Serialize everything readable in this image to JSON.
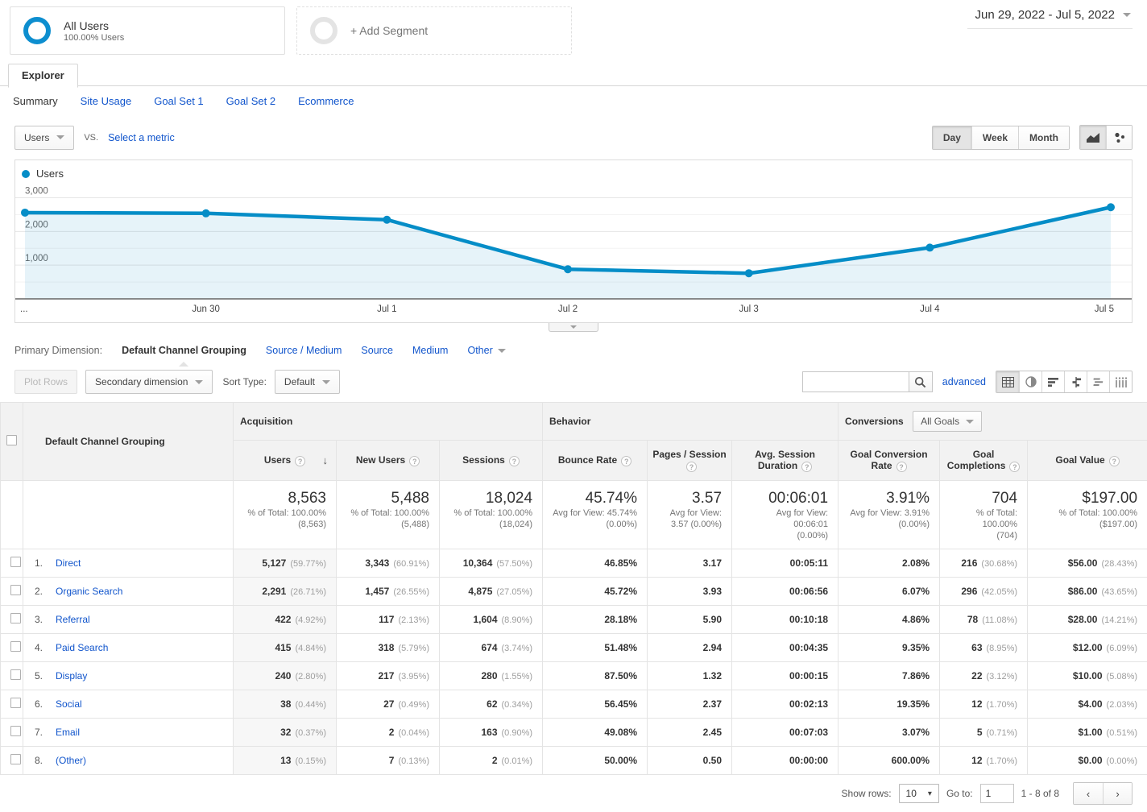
{
  "colors": {
    "brand_blue": "#058dc7",
    "link_blue": "#1155cc",
    "grid_line": "#e6e6e6",
    "header_bg": "#f2f2f2"
  },
  "segments": {
    "all_users": {
      "title": "All Users",
      "subtitle": "100.00% Users"
    },
    "add_segment": "+ Add Segment"
  },
  "date_range": "Jun 29, 2022 - Jul 5, 2022",
  "tabs": {
    "explorer": "Explorer",
    "subtabs": [
      {
        "label": "Summary",
        "active": true
      },
      {
        "label": "Site Usage",
        "active": false
      },
      {
        "label": "Goal Set 1",
        "active": false
      },
      {
        "label": "Goal Set 2",
        "active": false
      },
      {
        "label": "Ecommerce",
        "active": false
      }
    ]
  },
  "metric_controls": {
    "metric": "Users",
    "vs": "VS.",
    "select_metric": "Select a metric",
    "granularity": [
      "Day",
      "Week",
      "Month"
    ],
    "active_granularity": "Day"
  },
  "chart_data": {
    "type": "line",
    "title": "Users over time",
    "legend": "Users",
    "x_labels": [
      "...",
      "Jun 30",
      "Jul 1",
      "Jul 2",
      "Jul 3",
      "Jul 4",
      "Jul 5"
    ],
    "series": [
      {
        "name": "Users",
        "values": [
          2560,
          2540,
          2350,
          880,
          760,
          1520,
          2720
        ]
      }
    ],
    "y_ticks": [
      1000,
      2000,
      3000
    ],
    "y_tick_labels": [
      "1,000",
      "2,000",
      "3,000"
    ],
    "minor_ticks": [
      500,
      1500,
      2500
    ],
    "ylim": [
      0,
      3300
    ],
    "grid": true,
    "legend_position": "top-left"
  },
  "primary_dimension": {
    "label": "Primary Dimension:",
    "options": [
      {
        "label": "Default Channel Grouping",
        "active": true
      },
      {
        "label": "Source / Medium",
        "active": false
      },
      {
        "label": "Source",
        "active": false
      },
      {
        "label": "Medium",
        "active": false
      },
      {
        "label": "Other",
        "active": false,
        "caret": true
      }
    ]
  },
  "toolbar": {
    "plot_rows": "Plot Rows",
    "secondary_dimension": "Secondary dimension",
    "sort_type_label": "Sort Type:",
    "sort_type_value": "Default",
    "search_value": "",
    "advanced": "advanced",
    "view_icons": [
      "table-view",
      "percentage-view",
      "performance-view",
      "comparison-view",
      "term-cloud-view",
      "pivot-view"
    ],
    "active_view": "table-view"
  },
  "table": {
    "dimension_header": "Default Channel Grouping",
    "groups": [
      {
        "label": "Acquisition",
        "span": 3
      },
      {
        "label": "Behavior",
        "span": 3
      },
      {
        "label": "Conversions",
        "span": 3,
        "dropdown": "All Goals"
      }
    ],
    "columns": [
      {
        "label": "Users",
        "help": true,
        "sorted": "desc"
      },
      {
        "label": "New Users",
        "help": true
      },
      {
        "label": "Sessions",
        "help": true
      },
      {
        "label": "Bounce Rate",
        "help": true
      },
      {
        "label": "Pages / Session",
        "help": true
      },
      {
        "label": "Avg. Session Duration",
        "help": true
      },
      {
        "label": "Goal Conversion Rate",
        "help": true
      },
      {
        "label": "Goal Completions",
        "help": true
      },
      {
        "label": "Goal Value",
        "help": true
      }
    ],
    "totals": [
      {
        "value": "8,563",
        "line1": "% of Total: 100.00%",
        "line2": "(8,563)"
      },
      {
        "value": "5,488",
        "line1": "% of Total: 100.00%",
        "line2": "(5,488)"
      },
      {
        "value": "18,024",
        "line1": "% of Total: 100.00%",
        "line2": "(18,024)"
      },
      {
        "value": "45.74%",
        "line1": "Avg for View: 45.74%",
        "line2": "(0.00%)"
      },
      {
        "value": "3.57",
        "line1": "Avg for View:",
        "line2": "3.57 (0.00%)"
      },
      {
        "value": "00:06:01",
        "line1": "Avg for View: 00:06:01",
        "line2": "(0.00%)"
      },
      {
        "value": "3.91%",
        "line1": "Avg for View: 3.91%",
        "line2": "(0.00%)"
      },
      {
        "value": "704",
        "line1": "% of Total: 100.00%",
        "line2": "(704)"
      },
      {
        "value": "$197.00",
        "line1": "% of Total: 100.00%",
        "line2": "($197.00)"
      }
    ],
    "rows": [
      {
        "num": "1.",
        "channel": "Direct",
        "users": "5,127",
        "users_pct": "(59.77%)",
        "new_users": "3,343",
        "new_users_pct": "(60.91%)",
        "sessions": "10,364",
        "sessions_pct": "(57.50%)",
        "bounce_rate": "46.85%",
        "pages_session": "3.17",
        "avg_duration": "00:05:11",
        "goal_conv_rate": "2.08%",
        "goal_completions": "216",
        "goal_completions_pct": "(30.68%)",
        "goal_value": "$56.00",
        "goal_value_pct": "(28.43%)"
      },
      {
        "num": "2.",
        "channel": "Organic Search",
        "users": "2,291",
        "users_pct": "(26.71%)",
        "new_users": "1,457",
        "new_users_pct": "(26.55%)",
        "sessions": "4,875",
        "sessions_pct": "(27.05%)",
        "bounce_rate": "45.72%",
        "pages_session": "3.93",
        "avg_duration": "00:06:56",
        "goal_conv_rate": "6.07%",
        "goal_completions": "296",
        "goal_completions_pct": "(42.05%)",
        "goal_value": "$86.00",
        "goal_value_pct": "(43.65%)"
      },
      {
        "num": "3.",
        "channel": "Referral",
        "users": "422",
        "users_pct": "(4.92%)",
        "new_users": "117",
        "new_users_pct": "(2.13%)",
        "sessions": "1,604",
        "sessions_pct": "(8.90%)",
        "bounce_rate": "28.18%",
        "pages_session": "5.90",
        "avg_duration": "00:10:18",
        "goal_conv_rate": "4.86%",
        "goal_completions": "78",
        "goal_completions_pct": "(11.08%)",
        "goal_value": "$28.00",
        "goal_value_pct": "(14.21%)"
      },
      {
        "num": "4.",
        "channel": "Paid Search",
        "users": "415",
        "users_pct": "(4.84%)",
        "new_users": "318",
        "new_users_pct": "(5.79%)",
        "sessions": "674",
        "sessions_pct": "(3.74%)",
        "bounce_rate": "51.48%",
        "pages_session": "2.94",
        "avg_duration": "00:04:35",
        "goal_conv_rate": "9.35%",
        "goal_completions": "63",
        "goal_completions_pct": "(8.95%)",
        "goal_value": "$12.00",
        "goal_value_pct": "(6.09%)"
      },
      {
        "num": "5.",
        "channel": "Display",
        "users": "240",
        "users_pct": "(2.80%)",
        "new_users": "217",
        "new_users_pct": "(3.95%)",
        "sessions": "280",
        "sessions_pct": "(1.55%)",
        "bounce_rate": "87.50%",
        "pages_session": "1.32",
        "avg_duration": "00:00:15",
        "goal_conv_rate": "7.86%",
        "goal_completions": "22",
        "goal_completions_pct": "(3.12%)",
        "goal_value": "$10.00",
        "goal_value_pct": "(5.08%)"
      },
      {
        "num": "6.",
        "channel": "Social",
        "users": "38",
        "users_pct": "(0.44%)",
        "new_users": "27",
        "new_users_pct": "(0.49%)",
        "sessions": "62",
        "sessions_pct": "(0.34%)",
        "bounce_rate": "56.45%",
        "pages_session": "2.37",
        "avg_duration": "00:02:13",
        "goal_conv_rate": "19.35%",
        "goal_completions": "12",
        "goal_completions_pct": "(1.70%)",
        "goal_value": "$4.00",
        "goal_value_pct": "(2.03%)"
      },
      {
        "num": "7.",
        "channel": "Email",
        "users": "32",
        "users_pct": "(0.37%)",
        "new_users": "2",
        "new_users_pct": "(0.04%)",
        "sessions": "163",
        "sessions_pct": "(0.90%)",
        "bounce_rate": "49.08%",
        "pages_session": "2.45",
        "avg_duration": "00:07:03",
        "goal_conv_rate": "3.07%",
        "goal_completions": "5",
        "goal_completions_pct": "(0.71%)",
        "goal_value": "$1.00",
        "goal_value_pct": "(0.51%)"
      },
      {
        "num": "8.",
        "channel": "(Other)",
        "users": "13",
        "users_pct": "(0.15%)",
        "new_users": "7",
        "new_users_pct": "(0.13%)",
        "sessions": "2",
        "sessions_pct": "(0.01%)",
        "bounce_rate": "50.00%",
        "pages_session": "0.50",
        "avg_duration": "00:00:00",
        "goal_conv_rate": "600.00%",
        "goal_completions": "12",
        "goal_completions_pct": "(1.70%)",
        "goal_value": "$0.00",
        "goal_value_pct": "(0.00%)"
      }
    ]
  },
  "footer": {
    "show_rows_label": "Show rows:",
    "show_rows_value": "10",
    "goto_label": "Go to:",
    "goto_value": "1",
    "range": "1 - 8 of 8"
  }
}
